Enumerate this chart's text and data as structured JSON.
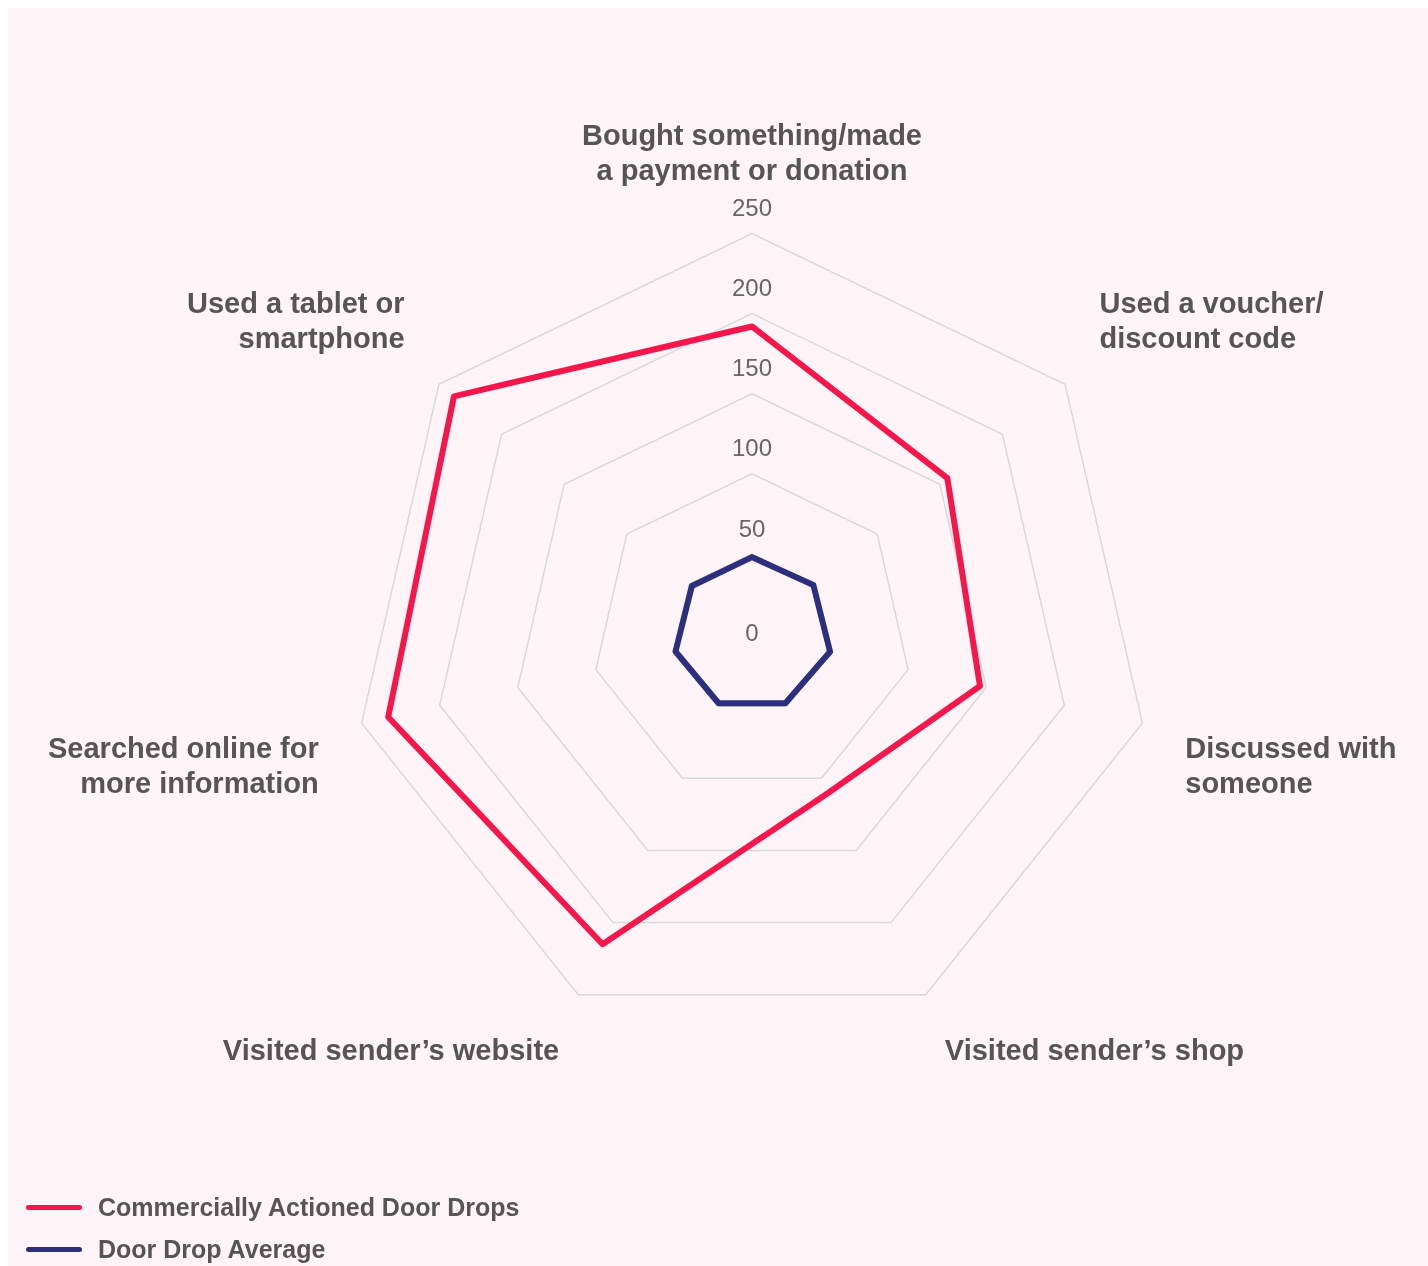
{
  "chart_data": {
    "type": "radar",
    "categories": [
      "Bought something/made a payment or donation",
      "Used a voucher/ discount code",
      "Discussed with someone",
      "Visited sender’s shop",
      "Visited sender’s website",
      "Searched online for more information",
      "Used a tablet or smartphone"
    ],
    "series": [
      {
        "name": "Commercially Actioned Door Drops",
        "color": "#f5174b",
        "values": [
          192,
          156,
          146,
          110,
          215,
          233,
          238
        ]
      },
      {
        "name": "Door Drop Average",
        "color": "#2b2f7d",
        "values": [
          48,
          49,
          50,
          48,
          48,
          49,
          48
        ]
      }
    ],
    "ylim": [
      0,
      250
    ],
    "yticks": [
      0,
      50,
      100,
      150,
      200,
      250
    ],
    "grid": true,
    "legend": "bottom left",
    "marker": "none"
  }
}
